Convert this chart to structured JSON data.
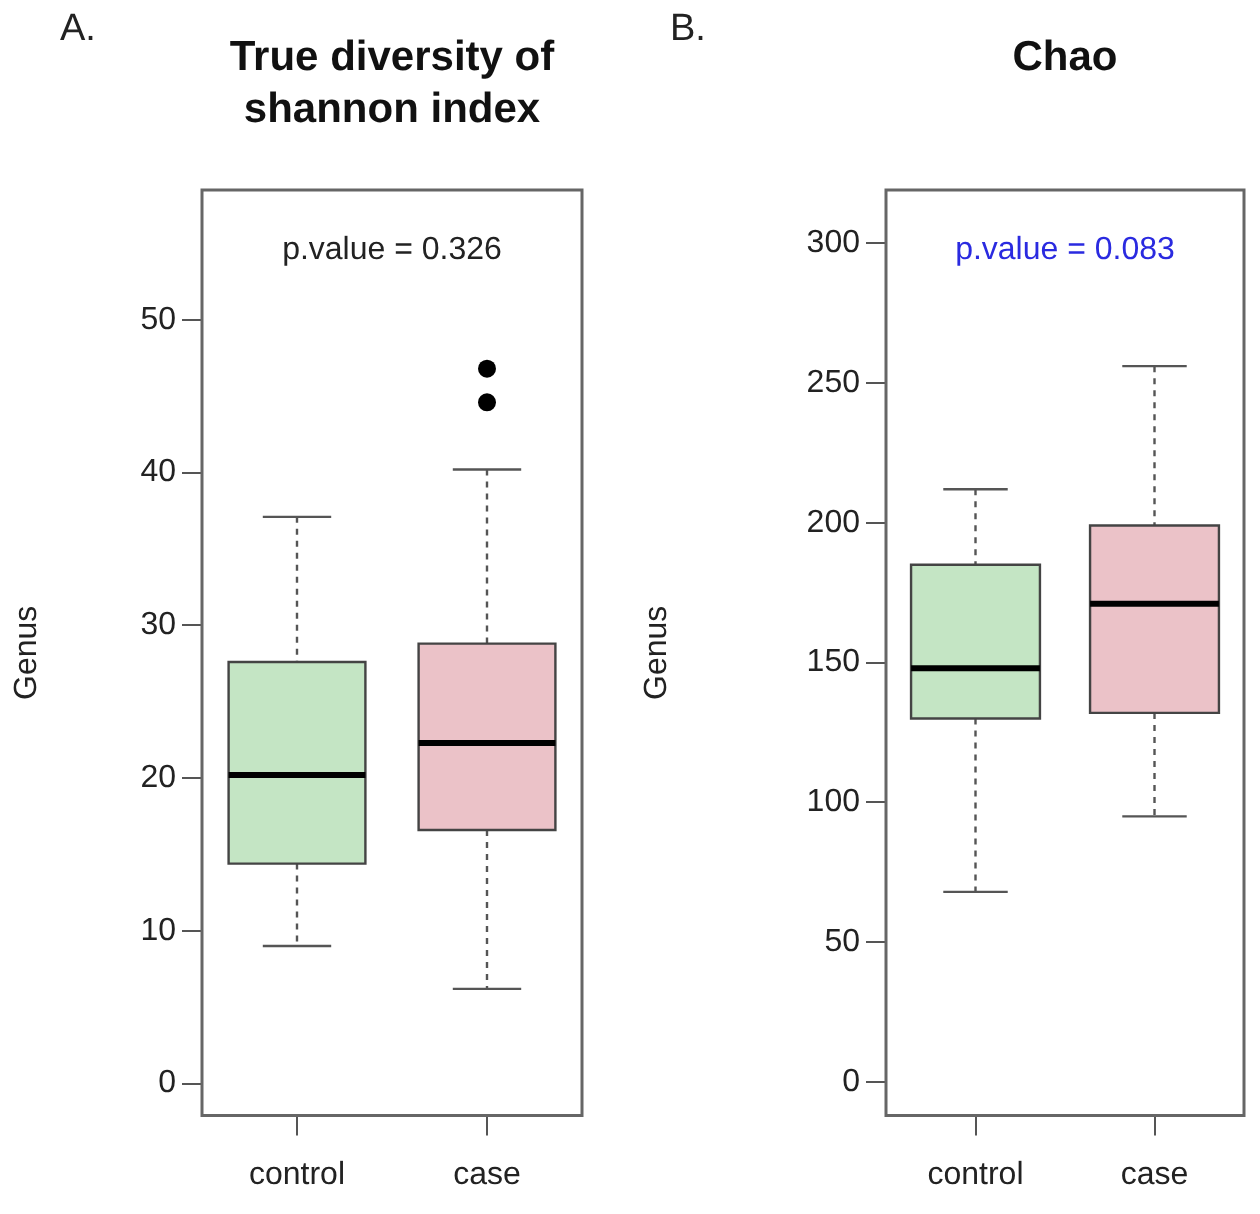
{
  "chart_data": [
    {
      "type": "box",
      "title": "True diversity of shannon index",
      "ylabel": "Genus",
      "annotations": [
        "A.",
        "p.value = 0.326"
      ],
      "categories": [
        "control",
        "case"
      ],
      "colors": [
        "#c4e5c4",
        "#ebc2c8"
      ],
      "boxes": [
        {
          "low": 9,
          "q1": 14.4,
          "median": 20.2,
          "q3": 27.6,
          "high": 37.1
        },
        {
          "low": 6.2,
          "q1": 16.6,
          "median": 22.3,
          "q3": 28.8,
          "high": 40.2,
          "outliers": [
            44.6,
            46.8
          ]
        }
      ],
      "ylim": [
        -2.1,
        58.5
      ],
      "yticks": [
        0,
        10,
        20,
        30,
        40,
        50
      ]
    },
    {
      "type": "box",
      "title": "Chao",
      "ylabel": "Genus",
      "annotations": [
        "B.",
        "p.value = 0.083"
      ],
      "categories": [
        "control",
        "case"
      ],
      "colors": [
        "#c4e5c4",
        "#ebc2c8"
      ],
      "boxes": [
        {
          "low": 68,
          "q1": 130,
          "median": 148,
          "q3": 185,
          "high": 212
        },
        {
          "low": 95,
          "q1": 132,
          "median": 171,
          "q3": 199,
          "high": 256
        }
      ],
      "ylim": [
        -12,
        319
      ],
      "yticks": [
        0,
        50,
        100,
        150,
        200,
        250,
        300
      ]
    }
  ]
}
